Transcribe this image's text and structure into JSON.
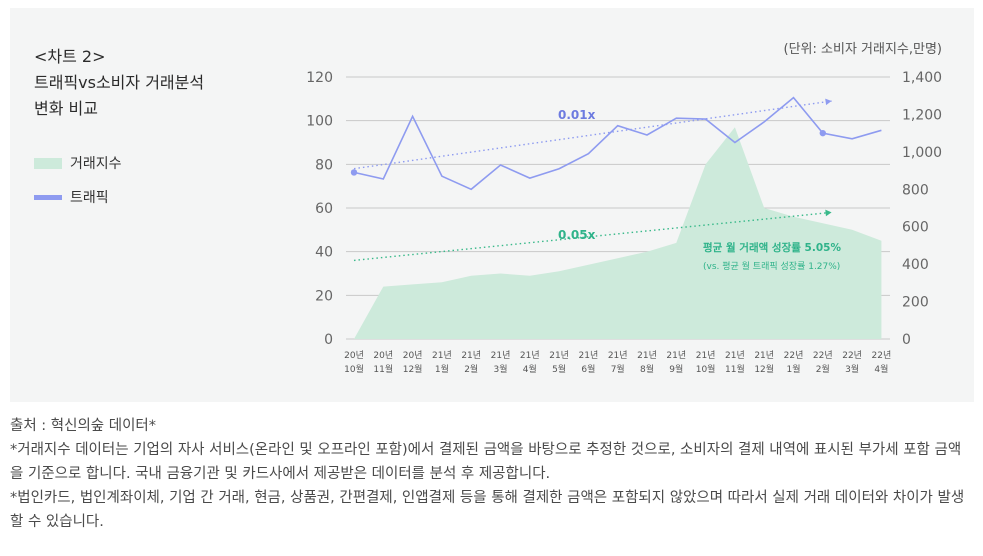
{
  "title": {
    "line1": "<차트 2>",
    "line2": "트래픽vs소비자 거래분석",
    "line3": "변화 비교"
  },
  "unit_label": "(단위: 소비자 거래지수,만명)",
  "colors": {
    "area": "#cdeadb",
    "line": "#8e9bf0",
    "gridline": "#c9c9c9",
    "trend_top": "#8e9bf0",
    "trend_bottom": "#39b98a",
    "annotation": "#2fb38a",
    "label_top": "#6d7be0"
  },
  "notes": {
    "source": "출처 : 혁신의숲 데이터*",
    "note1": "*거래지수 데이터는 기업의 자사 서비스(온라인 및 오프라인 포함)에서 결제된 금액을 바탕으로 추정한 것으로, 소비자의 결제 내역에 표시된 부가세 포함 금액을 기준으로 합니다. 국내 금융기관 및 카드사에서 제공받은 데이터를 분석 후 제공합니다.",
    "note2": "*법인카드, 법인계좌이체, 기업 간 거래, 현금, 상품권, 간편결제, 인앱결제 등을 통해 결제한 금액은 포함되지 않았으며 따라서 실제 거래 데이터와 차이가 발생할 수 있습니다."
  },
  "chart_data": {
    "type": "line",
    "categories": [
      "20년 10월",
      "20년 11월",
      "20년 12월",
      "21년 1월",
      "21년 2월",
      "21년 3월",
      "21년 4월",
      "21년 5월",
      "21년 6월",
      "21년 7월",
      "21년 8월",
      "21년 9월",
      "21년 10월",
      "21년 11월",
      "21년 12월",
      "22년 1월",
      "22년 2월",
      "22년 3월",
      "22년 4월"
    ],
    "x_labels": [
      [
        "20년",
        "10월"
      ],
      [
        "20년",
        "11월"
      ],
      [
        "20년",
        "12월"
      ],
      [
        "21년",
        "1월"
      ],
      [
        "21년",
        "2월"
      ],
      [
        "21년",
        "3월"
      ],
      [
        "21년",
        "4월"
      ],
      [
        "21년",
        "5월"
      ],
      [
        "21년",
        "6월"
      ],
      [
        "21년",
        "7월"
      ],
      [
        "21년",
        "8월"
      ],
      [
        "21년",
        "9월"
      ],
      [
        "21년",
        "10월"
      ],
      [
        "21년",
        "11월"
      ],
      [
        "21년",
        "12월"
      ],
      [
        "22년",
        "1월"
      ],
      [
        "22년",
        "2월"
      ],
      [
        "22년",
        "3월"
      ],
      [
        "22년",
        "4월"
      ]
    ],
    "left_axis": {
      "label": "거래지수",
      "ylim": [
        0,
        120
      ],
      "ticks": [
        "0",
        "20",
        "40",
        "60",
        "80",
        "100",
        "120"
      ]
    },
    "right_axis": {
      "label": "트래픽",
      "ylim": [
        0,
        1400
      ],
      "ticks": [
        "0",
        "200",
        "400",
        "600",
        "800",
        "1,000",
        "1,200",
        "1,400"
      ]
    },
    "series": [
      {
        "name": "거래지수",
        "type": "area",
        "axis": "left",
        "values": [
          0,
          24,
          25,
          26,
          29,
          30,
          29,
          31,
          34,
          37,
          40,
          44,
          80,
          97,
          60,
          56,
          53,
          50,
          45
        ]
      },
      {
        "name": "트래픽",
        "type": "line",
        "axis": "right",
        "values": [
          890,
          855,
          1190,
          870,
          800,
          930,
          860,
          910,
          990,
          1140,
          1090,
          1180,
          1175,
          1050,
          1160,
          1290,
          1100,
          1070,
          1115
        ]
      }
    ],
    "trend_lines": [
      {
        "label": "0.01x",
        "start": [
          0,
          78
        ],
        "end": [
          16.3,
          109
        ]
      },
      {
        "label": "0.05x",
        "start": [
          0,
          36
        ],
        "end": [
          16.3,
          58
        ]
      }
    ],
    "annotations": {
      "line1": "평균 월 거래액 성장률 5.05%",
      "line2": "(vs. 평균 월 트래픽 성장률 1.27%)"
    }
  }
}
